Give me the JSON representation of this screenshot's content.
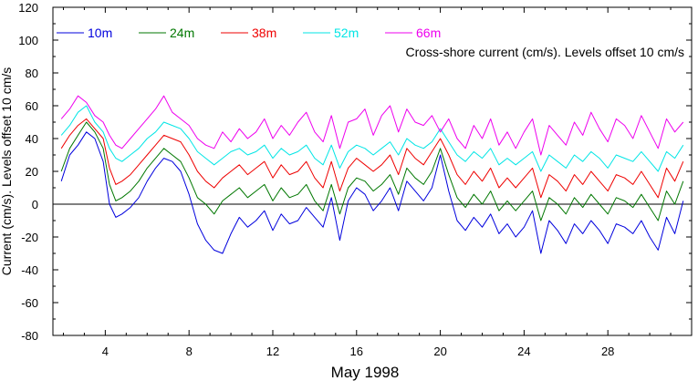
{
  "chart_data": {
    "type": "line",
    "title": "",
    "annotation": "Cross-shore current (cm/s). Levels offset 10 cm/s",
    "xlabel": "May 1998",
    "ylabel": "Current (cm/s). Levels offset 10 cm/s",
    "xlim": [
      1.5,
      32
    ],
    "ylim": [
      -80,
      120
    ],
    "x_ticks": [
      4,
      8,
      12,
      16,
      20,
      24,
      28
    ],
    "y_ticks": [
      -80,
      -60,
      -40,
      -20,
      0,
      20,
      40,
      60,
      80,
      100,
      120
    ],
    "zero_line": 0,
    "grid": false,
    "legend_position": "top",
    "series": [
      {
        "name": "10m",
        "color": "#0000dd",
        "offset": 0,
        "x": [
          1.9,
          2.3,
          2.7,
          3.1,
          3.5,
          3.9,
          4.2,
          4.5,
          4.8,
          5.2,
          5.6,
          6.0,
          6.4,
          6.8,
          7.2,
          7.6,
          8.0,
          8.4,
          8.8,
          9.2,
          9.6,
          10.0,
          10.4,
          10.8,
          11.2,
          11.6,
          12.0,
          12.4,
          12.8,
          13.2,
          13.6,
          14.0,
          14.4,
          14.8,
          15.2,
          15.6,
          16.0,
          16.4,
          16.8,
          17.2,
          17.6,
          18.0,
          18.4,
          18.8,
          19.2,
          19.6,
          20.0,
          20.4,
          20.8,
          21.2,
          21.6,
          22.0,
          22.4,
          22.8,
          23.2,
          23.6,
          24.0,
          24.4,
          24.8,
          25.2,
          25.6,
          26.0,
          26.4,
          26.8,
          27.2,
          27.6,
          28.0,
          28.4,
          28.8,
          29.2,
          29.6,
          30.0,
          30.4,
          30.8,
          31.2,
          31.6
        ],
        "y": [
          14,
          30,
          36,
          44,
          40,
          26,
          0,
          -8,
          -6,
          -2,
          4,
          14,
          22,
          28,
          26,
          20,
          6,
          -12,
          -22,
          -28,
          -30,
          -18,
          -8,
          -14,
          -10,
          -4,
          -16,
          -6,
          -12,
          -10,
          -2,
          -8,
          -14,
          4,
          -22,
          2,
          10,
          6,
          -4,
          2,
          10,
          -4,
          14,
          8,
          2,
          10,
          30,
          8,
          -10,
          -16,
          -8,
          -14,
          -6,
          -18,
          -12,
          -20,
          -14,
          -4,
          -30,
          -10,
          -16,
          -24,
          -12,
          -18,
          -10,
          -16,
          -24,
          -12,
          -14,
          -18,
          -10,
          -20,
          -28,
          -8,
          -18,
          2
        ]
      },
      {
        "name": "24m",
        "color": "#007700",
        "offset": 10,
        "x": [
          1.9,
          2.3,
          2.7,
          3.1,
          3.5,
          3.9,
          4.2,
          4.5,
          4.8,
          5.2,
          5.6,
          6.0,
          6.4,
          6.8,
          7.2,
          7.6,
          8.0,
          8.4,
          8.8,
          9.2,
          9.6,
          10.0,
          10.4,
          10.8,
          11.2,
          11.6,
          12.0,
          12.4,
          12.8,
          13.2,
          13.6,
          14.0,
          14.4,
          14.8,
          15.2,
          15.6,
          16.0,
          16.4,
          16.8,
          17.2,
          17.6,
          18.0,
          18.4,
          18.8,
          19.2,
          19.6,
          20.0,
          20.4,
          20.8,
          21.2,
          21.6,
          22.0,
          22.4,
          22.8,
          23.2,
          23.6,
          24.0,
          24.4,
          24.8,
          25.2,
          25.6,
          26.0,
          26.4,
          26.8,
          27.2,
          27.6,
          28.0,
          28.4,
          28.8,
          29.2,
          29.6,
          30.0,
          30.4,
          30.8,
          31.2,
          31.6
        ],
        "y": [
          20,
          34,
          42,
          50,
          44,
          34,
          12,
          2,
          4,
          8,
          14,
          22,
          28,
          34,
          30,
          26,
          16,
          4,
          0,
          -6,
          2,
          6,
          10,
          4,
          8,
          12,
          2,
          10,
          4,
          6,
          12,
          2,
          -4,
          12,
          -6,
          10,
          16,
          14,
          8,
          12,
          18,
          6,
          22,
          16,
          12,
          20,
          34,
          18,
          4,
          -2,
          6,
          0,
          8,
          -4,
          2,
          -4,
          2,
          8,
          -10,
          4,
          0,
          -6,
          4,
          -2,
          6,
          0,
          -6,
          4,
          2,
          -2,
          6,
          -2,
          -10,
          8,
          0,
          14
        ]
      },
      {
        "name": "38m",
        "color": "#ee0000",
        "offset": 20,
        "x": [
          1.9,
          2.3,
          2.7,
          3.1,
          3.5,
          3.9,
          4.2,
          4.5,
          4.8,
          5.2,
          5.6,
          6.0,
          6.4,
          6.8,
          7.2,
          7.6,
          8.0,
          8.4,
          8.8,
          9.2,
          9.6,
          10.0,
          10.4,
          10.8,
          11.2,
          11.6,
          12.0,
          12.4,
          12.8,
          13.2,
          13.6,
          14.0,
          14.4,
          14.8,
          15.2,
          15.6,
          16.0,
          16.4,
          16.8,
          17.2,
          17.6,
          18.0,
          18.4,
          18.8,
          19.2,
          19.6,
          20.0,
          20.4,
          20.8,
          21.2,
          21.6,
          22.0,
          22.4,
          22.8,
          23.2,
          23.6,
          24.0,
          24.4,
          24.8,
          25.2,
          25.6,
          26.0,
          26.4,
          26.8,
          27.2,
          27.6,
          28.0,
          28.4,
          28.8,
          29.2,
          29.6,
          30.0,
          30.4,
          30.8,
          31.2,
          31.6
        ],
        "y": [
          34,
          42,
          48,
          52,
          46,
          40,
          22,
          12,
          14,
          18,
          24,
          30,
          36,
          42,
          40,
          38,
          30,
          20,
          14,
          10,
          16,
          20,
          24,
          18,
          22,
          26,
          16,
          24,
          18,
          20,
          26,
          16,
          10,
          26,
          8,
          22,
          28,
          24,
          20,
          24,
          30,
          18,
          34,
          28,
          24,
          32,
          40,
          30,
          18,
          12,
          20,
          14,
          22,
          10,
          16,
          10,
          16,
          22,
          4,
          18,
          14,
          8,
          18,
          12,
          20,
          14,
          8,
          18,
          16,
          12,
          20,
          12,
          4,
          22,
          14,
          26
        ]
      },
      {
        "name": "52m",
        "color": "#00e5e5",
        "offset": 30,
        "x": [
          1.9,
          2.3,
          2.7,
          3.1,
          3.5,
          3.9,
          4.2,
          4.5,
          4.8,
          5.2,
          5.6,
          6.0,
          6.4,
          6.8,
          7.2,
          7.6,
          8.0,
          8.4,
          8.8,
          9.2,
          9.6,
          10.0,
          10.4,
          10.8,
          11.2,
          11.6,
          12.0,
          12.4,
          12.8,
          13.2,
          13.6,
          14.0,
          14.4,
          14.8,
          15.2,
          15.6,
          16.0,
          16.4,
          16.8,
          17.2,
          17.6,
          18.0,
          18.4,
          18.8,
          19.2,
          19.6,
          20.0,
          20.4,
          20.8,
          21.2,
          21.6,
          22.0,
          22.4,
          22.8,
          23.2,
          23.6,
          24.0,
          24.4,
          24.8,
          25.2,
          25.6,
          26.0,
          26.4,
          26.8,
          27.2,
          27.6,
          28.0,
          28.4,
          28.8,
          29.2,
          29.6,
          30.0,
          30.4,
          30.8,
          31.2,
          31.6
        ],
        "y": [
          42,
          48,
          56,
          60,
          50,
          44,
          34,
          28,
          26,
          30,
          34,
          40,
          44,
          50,
          48,
          46,
          40,
          32,
          28,
          24,
          28,
          32,
          34,
          30,
          32,
          36,
          28,
          34,
          30,
          32,
          36,
          28,
          24,
          36,
          22,
          32,
          36,
          34,
          30,
          34,
          38,
          30,
          40,
          36,
          34,
          38,
          46,
          38,
          30,
          26,
          32,
          28,
          34,
          24,
          28,
          24,
          28,
          32,
          20,
          30,
          26,
          22,
          30,
          26,
          32,
          28,
          22,
          30,
          28,
          26,
          32,
          26,
          20,
          32,
          28,
          36
        ]
      },
      {
        "name": "66m",
        "color": "#ee00ee",
        "offset": 40,
        "x": [
          1.9,
          2.3,
          2.7,
          3.1,
          3.5,
          3.9,
          4.2,
          4.5,
          4.8,
          5.2,
          5.6,
          6.0,
          6.4,
          6.8,
          7.2,
          7.6,
          8.0,
          8.4,
          8.8,
          9.2,
          9.6,
          10.0,
          10.4,
          10.8,
          11.2,
          11.6,
          12.0,
          12.4,
          12.8,
          13.2,
          13.6,
          14.0,
          14.4,
          14.8,
          15.2,
          15.6,
          16.0,
          16.4,
          16.8,
          17.2,
          17.6,
          18.0,
          18.4,
          18.8,
          19.2,
          19.6,
          20.0,
          20.4,
          20.8,
          21.2,
          21.6,
          22.0,
          22.4,
          22.8,
          23.2,
          23.6,
          24.0,
          24.4,
          24.8,
          25.2,
          25.6,
          26.0,
          26.4,
          26.8,
          27.2,
          27.6,
          28.0,
          28.4,
          28.8,
          29.2,
          29.6,
          30.0,
          30.4,
          30.8,
          31.2,
          31.6
        ],
        "y": [
          52,
          58,
          66,
          62,
          54,
          50,
          42,
          36,
          34,
          40,
          46,
          52,
          58,
          66,
          56,
          52,
          48,
          40,
          36,
          34,
          44,
          38,
          46,
          40,
          44,
          52,
          40,
          48,
          42,
          50,
          56,
          44,
          38,
          54,
          34,
          50,
          52,
          58,
          42,
          54,
          60,
          44,
          58,
          50,
          48,
          54,
          44,
          52,
          40,
          34,
          48,
          40,
          52,
          36,
          44,
          34,
          44,
          52,
          30,
          48,
          42,
          36,
          50,
          42,
          56,
          46,
          38,
          52,
          48,
          40,
          54,
          44,
          34,
          52,
          44,
          50
        ]
      }
    ]
  }
}
